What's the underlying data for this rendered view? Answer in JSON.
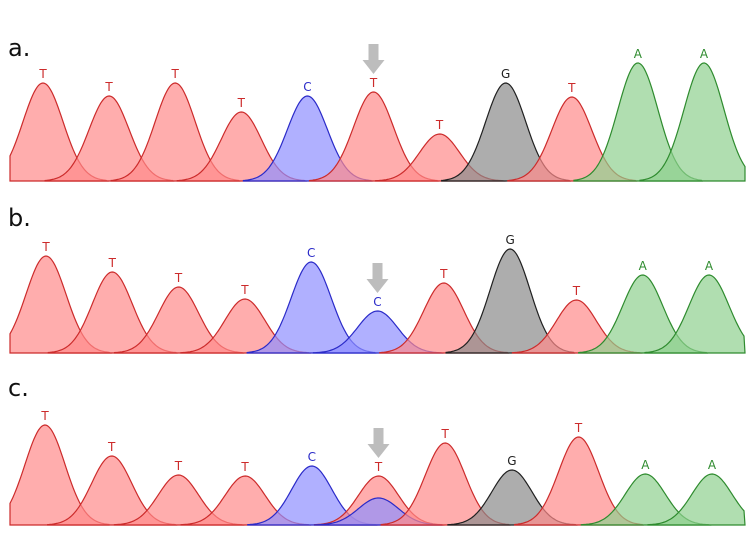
{
  "colors": {
    "T": "#cc2b2b",
    "C": "#2a2ac8",
    "G": "#202020",
    "A": "#2e8b2e",
    "fill_T": "#ff8a8a",
    "fill_C": "#8f8fff",
    "fill_G": "#8a8a8a",
    "fill_A": "#8fd08f",
    "arrow": "#bdbdbd",
    "baseline": "#c9a9a9"
  },
  "chart_data": [
    {
      "type": "area",
      "panel_label": "a.",
      "sequence": [
        "T",
        "T",
        "T",
        "T",
        "C",
        "T",
        "T",
        "G",
        "T",
        "A",
        "A"
      ],
      "peaks": [
        {
          "base": "T",
          "position": 1,
          "intensity": 0.98
        },
        {
          "base": "T",
          "position": 2,
          "intensity": 0.85
        },
        {
          "base": "T",
          "position": 3,
          "intensity": 0.98
        },
        {
          "base": "T",
          "position": 4,
          "intensity": 0.69
        },
        {
          "base": "C",
          "position": 5,
          "intensity": 0.85
        },
        {
          "base": "T",
          "position": 6,
          "intensity": 0.89
        },
        {
          "base": "T",
          "position": 7,
          "intensity": 0.47
        },
        {
          "base": "G",
          "position": 8,
          "intensity": 0.98
        },
        {
          "base": "T",
          "position": 9,
          "intensity": 0.84
        },
        {
          "base": "A",
          "position": 10,
          "intensity": 1.18
        },
        {
          "base": "A",
          "position": 11,
          "intensity": 1.18
        }
      ],
      "arrow_position": 6
    },
    {
      "type": "area",
      "panel_label": "b.",
      "sequence": [
        "T",
        "T",
        "T",
        "T",
        "C",
        "C",
        "T",
        "G",
        "T",
        "A",
        "A"
      ],
      "peaks": [
        {
          "base": "T",
          "position": 1,
          "intensity": 0.97
        },
        {
          "base": "T",
          "position": 2,
          "intensity": 0.81
        },
        {
          "base": "T",
          "position": 3,
          "intensity": 0.66
        },
        {
          "base": "T",
          "position": 4,
          "intensity": 0.54
        },
        {
          "base": "C",
          "position": 5,
          "intensity": 0.91
        },
        {
          "base": "C",
          "position": 6,
          "intensity": 0.42
        },
        {
          "base": "T",
          "position": 7,
          "intensity": 0.7
        },
        {
          "base": "G",
          "position": 8,
          "intensity": 1.04
        },
        {
          "base": "T",
          "position": 9,
          "intensity": 0.53
        },
        {
          "base": "A",
          "position": 10,
          "intensity": 0.78
        },
        {
          "base": "A",
          "position": 11,
          "intensity": 0.78
        }
      ],
      "arrow_position": 6
    },
    {
      "type": "area",
      "panel_label": "c.",
      "sequence": [
        "T",
        "T",
        "T",
        "T",
        "C",
        "T",
        "T",
        "G",
        "T",
        "A",
        "A"
      ],
      "peaks": [
        {
          "base": "T",
          "position": 1,
          "intensity": 1.0
        },
        {
          "base": "T",
          "position": 2,
          "intensity": 0.69
        },
        {
          "base": "T",
          "position": 3,
          "intensity": 0.5
        },
        {
          "base": "T",
          "position": 4,
          "intensity": 0.49
        },
        {
          "base": "C",
          "position": 5,
          "intensity": 0.59
        },
        {
          "base": "T",
          "position": 6,
          "intensity": 0.49
        },
        {
          "base": "C",
          "position": 6,
          "intensity": 0.27,
          "secondary": true
        },
        {
          "base": "T",
          "position": 7,
          "intensity": 0.82
        },
        {
          "base": "G",
          "position": 8,
          "intensity": 0.55
        },
        {
          "base": "T",
          "position": 9,
          "intensity": 0.88
        },
        {
          "base": "A",
          "position": 10,
          "intensity": 0.51
        },
        {
          "base": "A",
          "position": 11,
          "intensity": 0.51
        }
      ],
      "arrow_position": 6
    }
  ]
}
